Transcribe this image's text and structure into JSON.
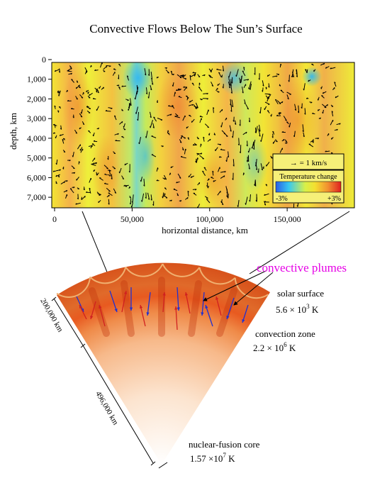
{
  "title": "Convective Flows Below The Sun’s Surface",
  "heatmap": {
    "y_axis_label": "depth, km",
    "y_ticks": [
      "0",
      "1,000",
      "2,000",
      "3,000",
      "4,000",
      "5,000",
      "6,000",
      "7,000"
    ],
    "y_tick_values": [
      0,
      1000,
      2000,
      3000,
      4000,
      5000,
      6000,
      7000
    ],
    "x_axis_label": "horizontal distance, km",
    "x_ticks": [
      "0",
      "50,000",
      "100,000",
      "150,000"
    ],
    "x_tick_values": [
      0,
      50000,
      100000,
      150000
    ],
    "legend": {
      "arrow_label": "→  = 1 km/s",
      "scale_title": "Temperature change",
      "scale_min": "-3%",
      "scale_max": "+3%"
    },
    "colors": {
      "background": "#f2e92e",
      "warm": "#f28a2a",
      "cool": "#4ec8e8"
    }
  },
  "sun": {
    "plumes_label": "convective plumes",
    "plumes_color": "#e600e6",
    "surface_label": "solar surface",
    "surface_temp_html": "5.6 × 10",
    "surface_temp_exp": "3",
    "surface_temp_unit": " K",
    "zone_label": "convection zone",
    "zone_temp": "2.2 × 10",
    "zone_temp_exp": "6",
    "zone_temp_unit": " K",
    "core_label": "nuclear-fusion core",
    "core_temp": "1.57 ×10",
    "core_temp_exp": "7",
    "core_temp_unit": " K",
    "dim_zone": "200,000 km",
    "dim_radius": "496,000 km"
  }
}
